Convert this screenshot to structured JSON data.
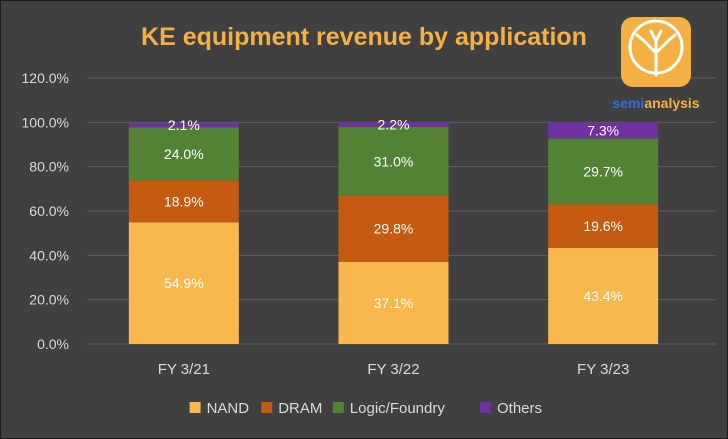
{
  "chart_data": {
    "type": "bar",
    "stacked": true,
    "title": "KE equipment revenue by application",
    "xlabel": "",
    "ylabel": "",
    "categories": [
      "FY 3/21",
      "FY 3/22",
      "FY 3/23"
    ],
    "ylim": [
      0,
      120
    ],
    "yticks": [
      "0.0%",
      "20.0%",
      "40.0%",
      "60.0%",
      "80.0%",
      "100.0%",
      "120.0%"
    ],
    "grid": true,
    "legend_position": "bottom",
    "series": [
      {
        "name": "NAND",
        "color": "#f8b84e",
        "values": [
          54.9,
          37.1,
          43.4
        ],
        "labels": [
          "54.9%",
          "37.1%",
          "43.4%"
        ]
      },
      {
        "name": "DRAM",
        "color": "#c55a11",
        "values": [
          18.9,
          29.8,
          19.6
        ],
        "labels": [
          "18.9%",
          "29.8%",
          "19.6%"
        ]
      },
      {
        "name": "Logic/Foundry",
        "color": "#548235",
        "values": [
          24.0,
          31.0,
          29.7
        ],
        "labels": [
          "24.0%",
          "31.0%",
          "29.7%"
        ]
      },
      {
        "name": "Others",
        "color": "#7030a0",
        "values": [
          2.1,
          2.2,
          7.3
        ],
        "labels": [
          "2.1%",
          "2.2%",
          "7.3%"
        ]
      }
    ]
  },
  "brand": {
    "left": "semi",
    "right": "analysis",
    "left_color": "#2f6fd6",
    "right_color": "#f4b042"
  }
}
